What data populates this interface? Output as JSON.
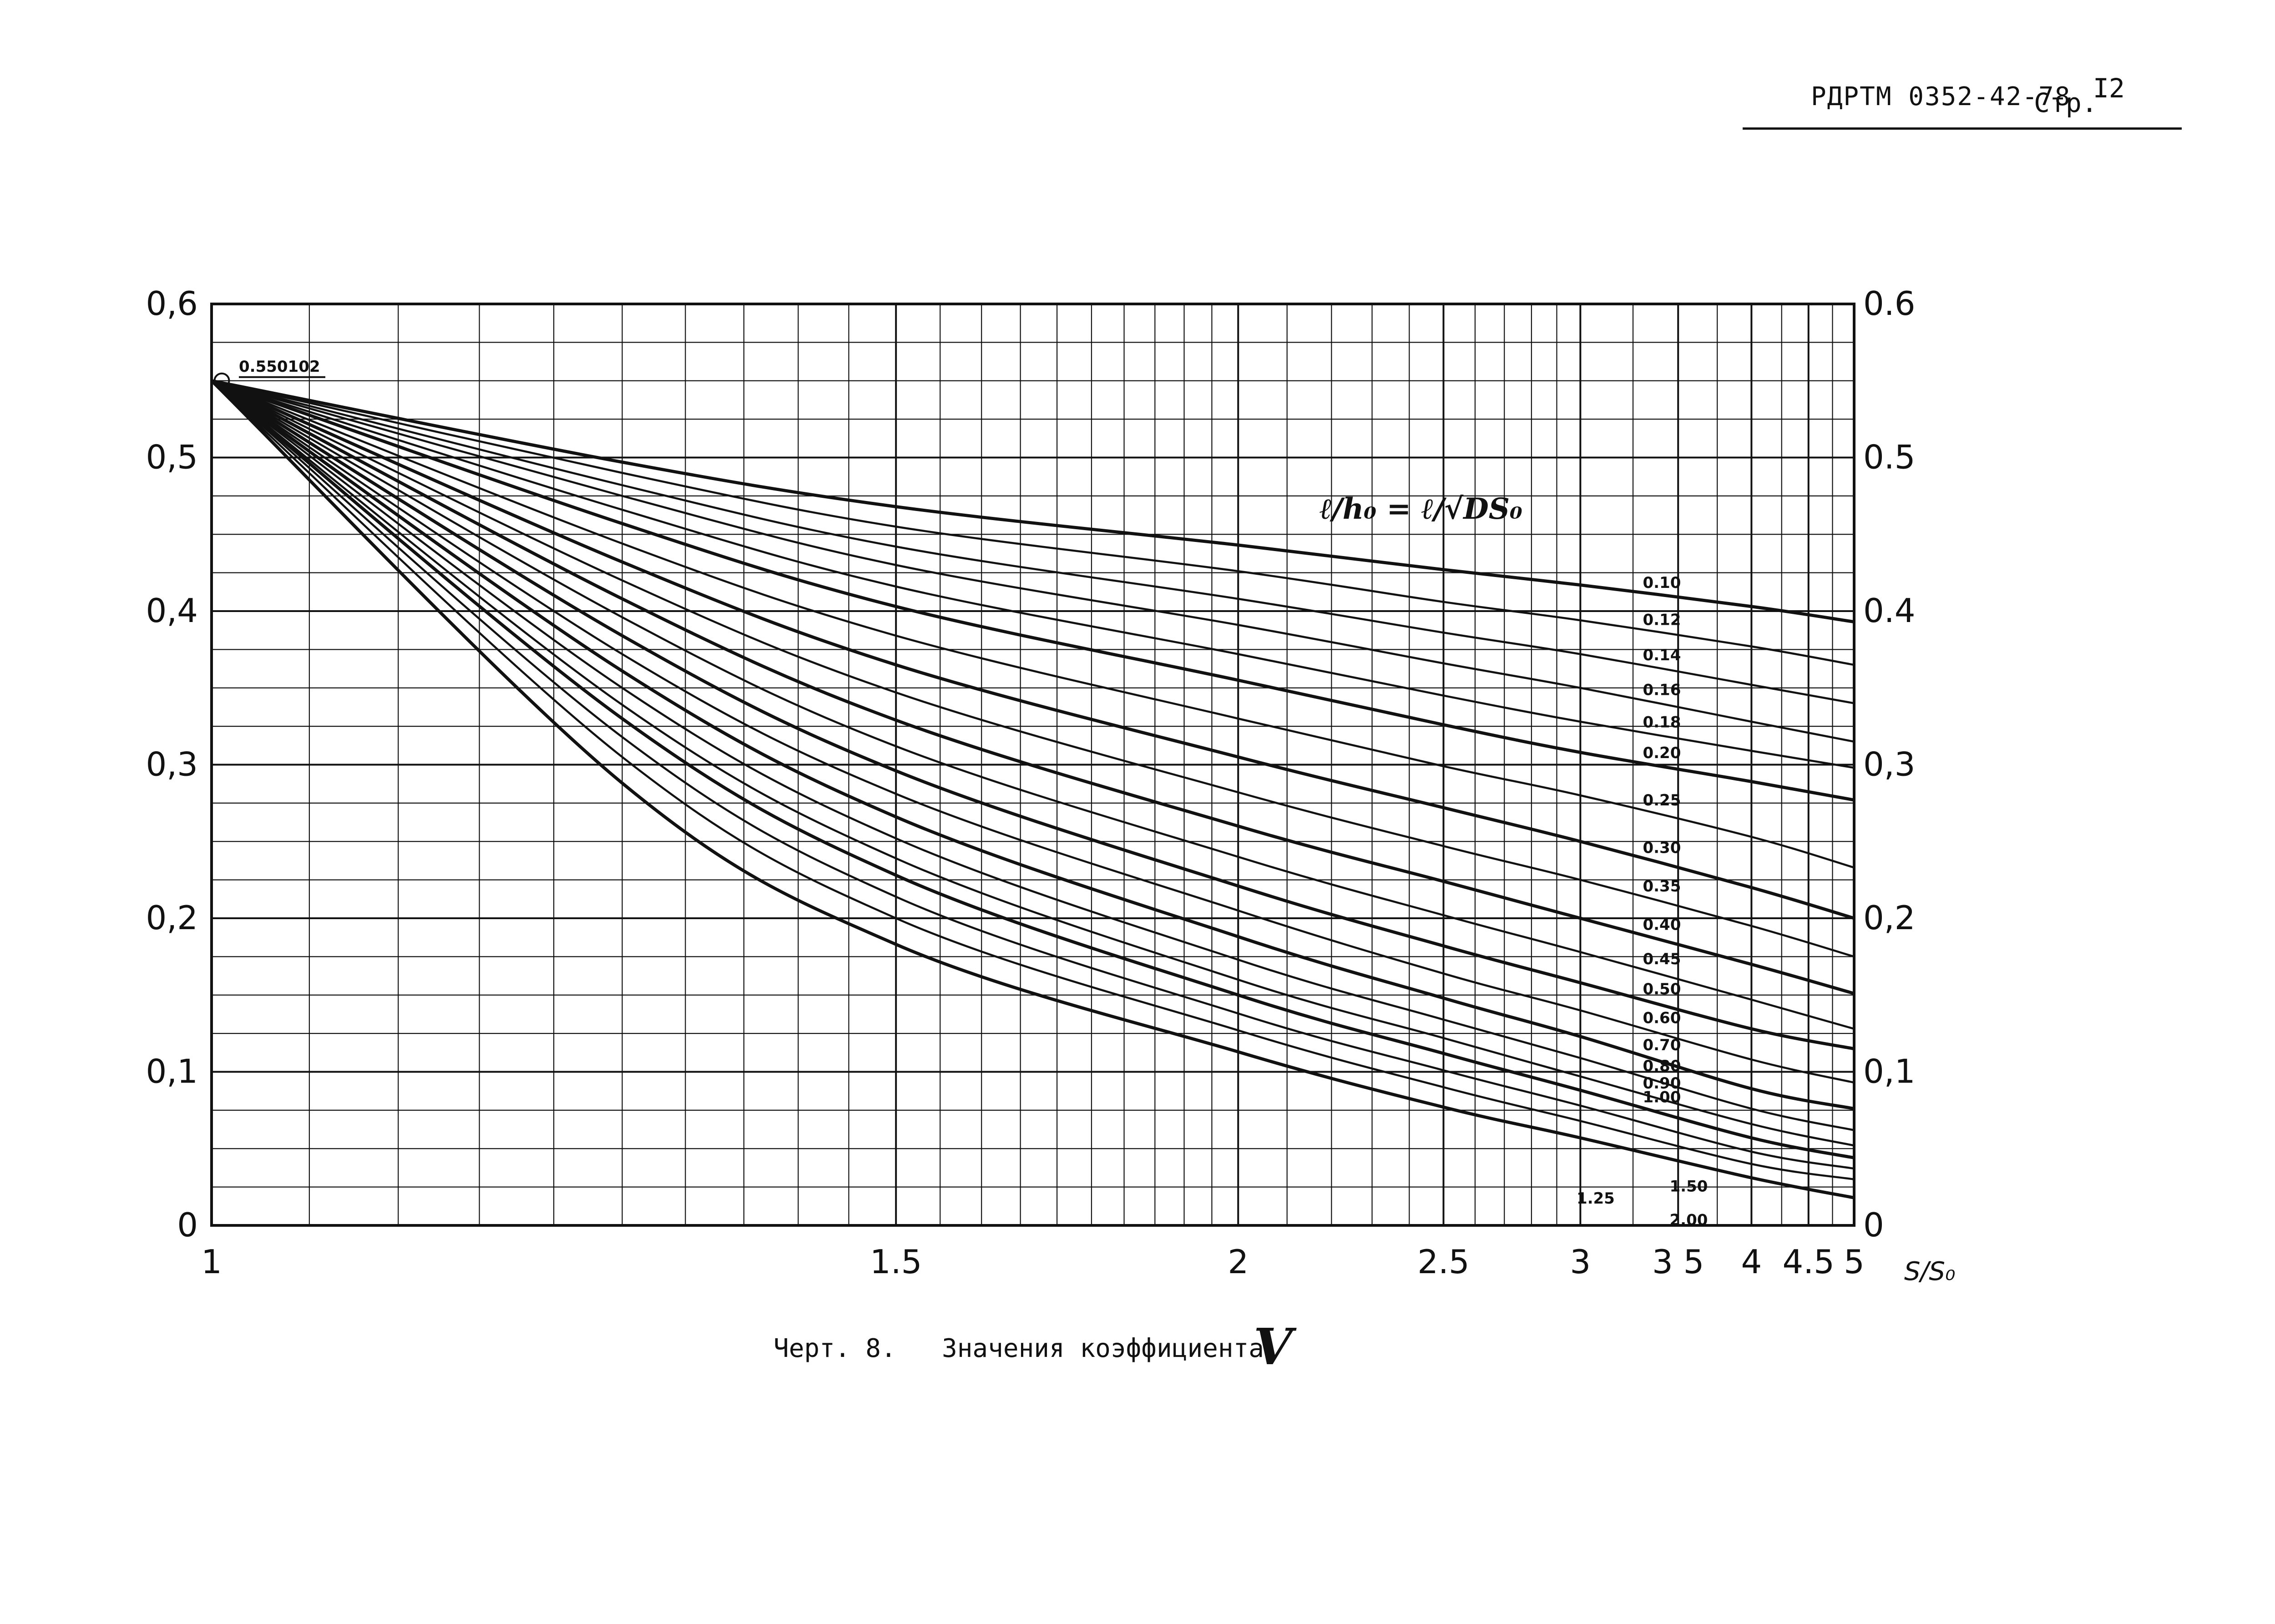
{
  "header": {
    "doc_code": "РДРТМ 0352-42-78",
    "page_label": "Стр.",
    "page_number": "I2"
  },
  "caption": {
    "prefix": "Черт. 8.",
    "text": "Значения коэффициента",
    "symbol": "V"
  },
  "chart_data": {
    "type": "line",
    "x_scale": "reciprocal",
    "xlim": [
      1,
      5
    ],
    "ylim": [
      0,
      0.6
    ],
    "xlabel": "S/S₀",
    "ylabel_left": "",
    "ylabel_right": "",
    "legend_title": "ℓ/h₀ = ℓ/√DS₀",
    "start_label": "0.550102",
    "grid": true,
    "x_ticks": [
      {
        "v": 1,
        "label": "1"
      },
      {
        "v": 1.5,
        "label": "1.5"
      },
      {
        "v": 2,
        "label": "2"
      },
      {
        "v": 2.5,
        "label": "2.5"
      },
      {
        "v": 3,
        "label": "3"
      },
      {
        "v": 3.5,
        "label": "3 5"
      },
      {
        "v": 4,
        "label": "4"
      },
      {
        "v": 4.5,
        "label": "4.5"
      },
      {
        "v": 5,
        "label": "5"
      }
    ],
    "y_ticks_left": [
      {
        "v": 0,
        "label": "0"
      },
      {
        "v": 0.1,
        "label": "0,1"
      },
      {
        "v": 0.2,
        "label": "0,2"
      },
      {
        "v": 0.3,
        "label": "0,3"
      },
      {
        "v": 0.4,
        "label": "0,4"
      },
      {
        "v": 0.5,
        "label": "0,5"
      },
      {
        "v": 0.6,
        "label": "0,6"
      }
    ],
    "y_ticks_right": [
      {
        "v": 0,
        "label": "0"
      },
      {
        "v": 0.1,
        "label": "0,1"
      },
      {
        "v": 0.2,
        "label": "0,2"
      },
      {
        "v": 0.3,
        "label": "0,3"
      },
      {
        "v": 0.4,
        "label": "0.4"
      },
      {
        "v": 0.5,
        "label": "0.5"
      },
      {
        "v": 0.6,
        "label": "0.6"
      }
    ],
    "x": [
      1,
      1.25,
      1.5,
      2,
      2.5,
      3,
      4,
      5
    ],
    "series": [
      {
        "name": "0.10",
        "values": [
          0.55,
          0.497,
          0.468,
          0.443,
          0.427,
          0.417,
          0.403,
          0.393
        ]
      },
      {
        "name": "0.12",
        "values": [
          0.55,
          0.49,
          0.455,
          0.426,
          0.406,
          0.394,
          0.377,
          0.365
        ]
      },
      {
        "name": "0.14",
        "values": [
          0.55,
          0.482,
          0.442,
          0.408,
          0.386,
          0.372,
          0.352,
          0.34
        ]
      },
      {
        "name": "0.16",
        "values": [
          0.55,
          0.475,
          0.43,
          0.391,
          0.366,
          0.35,
          0.328,
          0.315
        ]
      },
      {
        "name": "0.18",
        "values": [
          0.55,
          0.466,
          0.416,
          0.372,
          0.345,
          0.328,
          0.309,
          0.298
        ]
      },
      {
        "name": "0.20",
        "values": [
          0.55,
          0.457,
          0.403,
          0.355,
          0.326,
          0.308,
          0.289,
          0.277
        ]
      },
      {
        "name": "0.25",
        "values": [
          0.55,
          0.444,
          0.384,
          0.33,
          0.299,
          0.28,
          0.253,
          0.233
        ]
      },
      {
        "name": "0.30",
        "values": [
          0.55,
          0.432,
          0.365,
          0.305,
          0.272,
          0.25,
          0.22,
          0.2
        ]
      },
      {
        "name": "0.35",
        "values": [
          0.55,
          0.42,
          0.347,
          0.282,
          0.247,
          0.225,
          0.195,
          0.175
        ]
      },
      {
        "name": "0.40",
        "values": [
          0.55,
          0.408,
          0.329,
          0.26,
          0.224,
          0.2,
          0.17,
          0.151
        ]
      },
      {
        "name": "0.45",
        "values": [
          0.55,
          0.396,
          0.312,
          0.24,
          0.202,
          0.178,
          0.147,
          0.128
        ]
      },
      {
        "name": "0.50",
        "values": [
          0.55,
          0.384,
          0.296,
          0.221,
          0.182,
          0.158,
          0.128,
          0.115
        ]
      },
      {
        "name": "0.60",
        "values": [
          0.55,
          0.372,
          0.281,
          0.205,
          0.164,
          0.14,
          0.108,
          0.093
        ]
      },
      {
        "name": "0.70",
        "values": [
          0.55,
          0.361,
          0.266,
          0.188,
          0.148,
          0.123,
          0.089,
          0.076
        ]
      },
      {
        "name": "0.80",
        "values": [
          0.55,
          0.35,
          0.252,
          0.173,
          0.134,
          0.109,
          0.076,
          0.062
        ]
      },
      {
        "name": "0.90",
        "values": [
          0.55,
          0.339,
          0.239,
          0.16,
          0.122,
          0.097,
          0.066,
          0.052
        ]
      },
      {
        "name": "1.00",
        "values": [
          0.55,
          0.33,
          0.228,
          0.15,
          0.112,
          0.088,
          0.057,
          0.044
        ]
      },
      {
        "name": "1.25",
        "values": [
          0.55,
          0.318,
          0.214,
          0.138,
          0.101,
          0.078,
          0.048,
          0.037
        ]
      },
      {
        "name": "1.50",
        "values": [
          0.55,
          0.305,
          0.2,
          0.127,
          0.09,
          0.068,
          0.04,
          0.03
        ]
      },
      {
        "name": "2.00",
        "values": [
          0.55,
          0.288,
          0.183,
          0.113,
          0.077,
          0.057,
          0.031,
          0.018
        ]
      }
    ]
  }
}
